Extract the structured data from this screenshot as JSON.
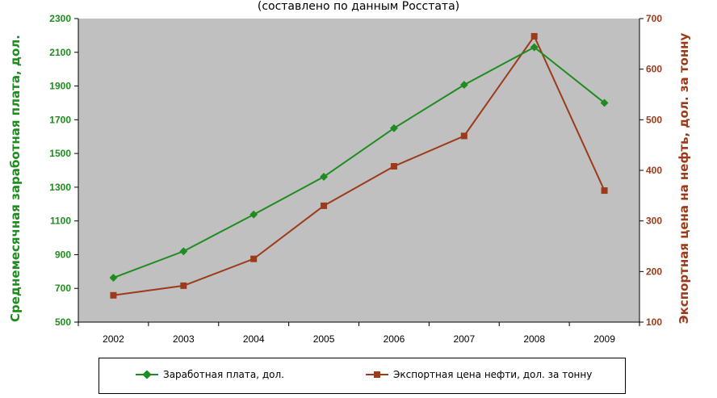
{
  "subtitle": "(составлено по данным Росстата)",
  "colors": {
    "salary": "#1e8c1e",
    "oil": "#9c3a1a",
    "plot_bg": "#c0c0c0"
  },
  "chart_data": {
    "type": "line",
    "categories": [
      "2002",
      "2003",
      "2004",
      "2005",
      "2006",
      "2007",
      "2008",
      "2009"
    ],
    "series": [
      {
        "name": "Заработная плата, дол.",
        "axis": "left",
        "values": [
          763,
          920,
          1138,
          1362,
          1650,
          1907,
          2130,
          1800
        ]
      },
      {
        "name": "Экспортная цена нефти, дол. за тонну",
        "axis": "right",
        "values": [
          153,
          172,
          225,
          330,
          408,
          468,
          665,
          360
        ]
      }
    ],
    "ylabel_left": "Среднемесячная заработная плата, дол.",
    "ylabel_right": "Экспортная цена на нефть, дол. за тонну",
    "ylim_left": [
      500,
      2300
    ],
    "ylim_right": [
      100,
      700
    ],
    "yticks_left": [
      "500",
      "700",
      "900",
      "1100",
      "1300",
      "1500",
      "1700",
      "1900",
      "2100",
      "2300"
    ],
    "yticks_right": [
      "100",
      "200",
      "300",
      "400",
      "500",
      "600",
      "700"
    ],
    "grid": false,
    "legend_position": "bottom"
  }
}
